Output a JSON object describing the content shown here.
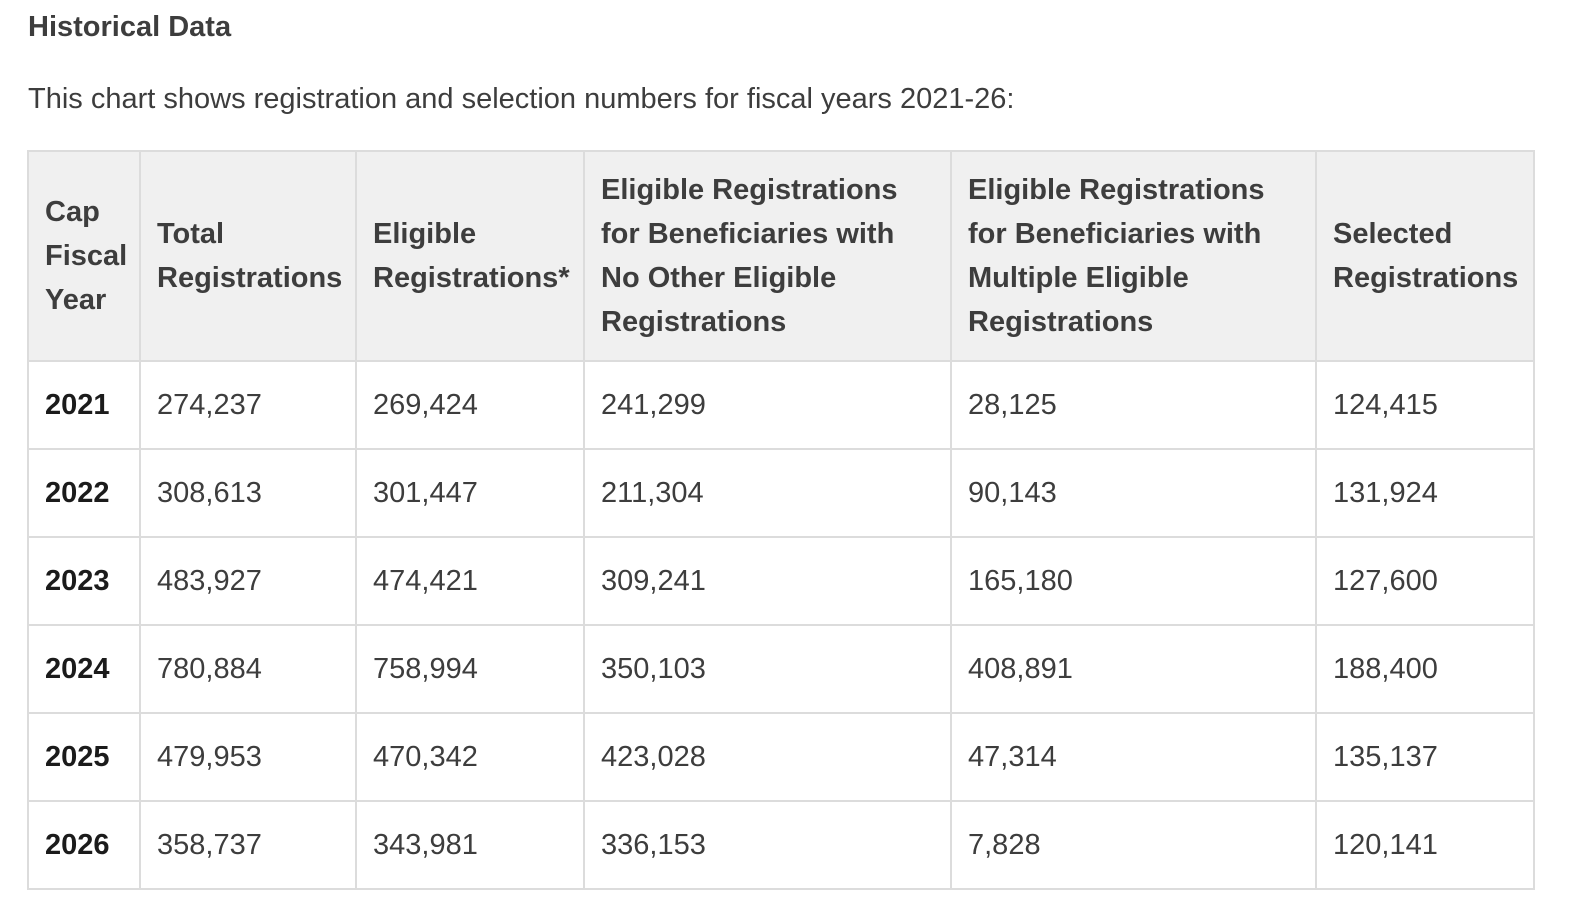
{
  "section": {
    "heading": "Historical Data",
    "intro": "This chart shows registration and selection numbers for fiscal years 2021-26:"
  },
  "table": {
    "headers": [
      "Cap\nFiscal\nYear",
      "Total\nRegistrations",
      "Eligible\nRegistrations*",
      "Eligible Registrations\nfor Beneficiaries with\nNo Other Eligible\nRegistrations",
      "Eligible Registrations\nfor Beneficiaries with\nMultiple Eligible\nRegistrations",
      "Selected\nRegistrations"
    ],
    "rows": [
      {
        "year": "2021",
        "total": "274,237",
        "eligible": "269,424",
        "no_other": "241,299",
        "multiple": "28,125",
        "selected": "124,415"
      },
      {
        "year": "2022",
        "total": "308,613",
        "eligible": "301,447",
        "no_other": "211,304",
        "multiple": "90,143",
        "selected": "131,924"
      },
      {
        "year": "2023",
        "total": "483,927",
        "eligible": "474,421",
        "no_other": "309,241",
        "multiple": "165,180",
        "selected": "127,600"
      },
      {
        "year": "2024",
        "total": "780,884",
        "eligible": "758,994",
        "no_other": "350,103",
        "multiple": "408,891",
        "selected": "188,400"
      },
      {
        "year": "2025",
        "total": "479,953",
        "eligible": "470,342",
        "no_other": "423,028",
        "multiple": "47,314",
        "selected": "135,137"
      },
      {
        "year": "2026",
        "total": "358,737",
        "eligible": "343,981",
        "no_other": "336,153",
        "multiple": "7,828",
        "selected": "120,141"
      }
    ]
  }
}
